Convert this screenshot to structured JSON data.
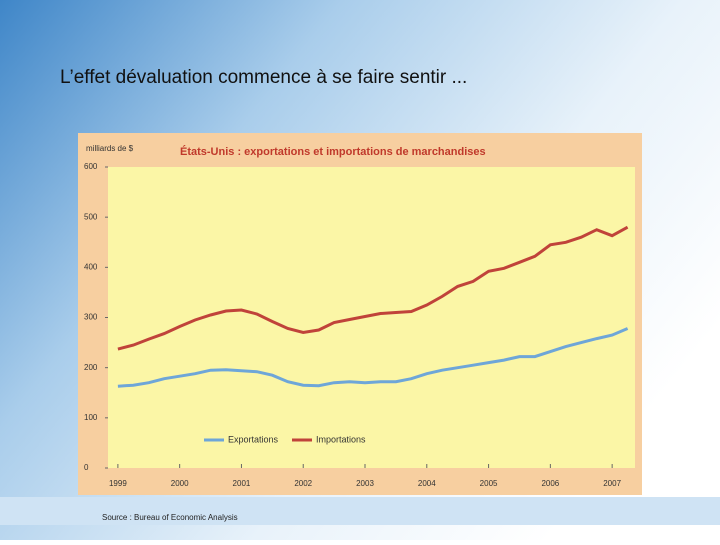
{
  "slide_title": "L’effet dévaluation commence à se faire sentir ...",
  "source": "Source : Bureau of Economic Analysis",
  "chart_data": {
    "type": "line",
    "title": "États-Unis : exportations et importations de marchandises",
    "y_label": "milliards de $",
    "x": [
      1999,
      1999.25,
      1999.5,
      1999.75,
      2000,
      2000.25,
      2000.5,
      2000.75,
      2001,
      2001.25,
      2001.5,
      2001.75,
      2002,
      2002.25,
      2002.5,
      2002.75,
      2003,
      2003.25,
      2003.5,
      2003.75,
      2004,
      2004.25,
      2004.5,
      2004.75,
      2005,
      2005.25,
      2005.5,
      2005.75,
      2006,
      2006.25,
      2006.5,
      2006.75,
      2007,
      2007.25
    ],
    "series": [
      {
        "name": "Exportations",
        "color": "#6ea6d8",
        "values": [
          163,
          165,
          170,
          178,
          183,
          188,
          195,
          196,
          194,
          192,
          185,
          172,
          165,
          164,
          170,
          172,
          170,
          172,
          172,
          178,
          188,
          195,
          200,
          205,
          210,
          215,
          222,
          222,
          232,
          242,
          250,
          258,
          265,
          278
        ]
      },
      {
        "name": "Importations",
        "color": "#c0433a",
        "values": [
          237,
          245,
          257,
          268,
          282,
          295,
          305,
          313,
          315,
          307,
          292,
          278,
          270,
          275,
          290,
          296,
          302,
          308,
          310,
          312,
          325,
          342,
          362,
          372,
          392,
          398,
          410,
          422,
          445,
          450,
          460,
          475,
          463,
          480
        ]
      }
    ],
    "xlim": [
      1998.84,
      2007.37
    ],
    "xticks": [
      1999,
      2000,
      2001,
      2002,
      2003,
      2004,
      2005,
      2006,
      2007
    ],
    "ylim": [
      0,
      600
    ],
    "yticks": [
      0,
      100,
      200,
      300,
      400,
      500,
      600
    ]
  }
}
